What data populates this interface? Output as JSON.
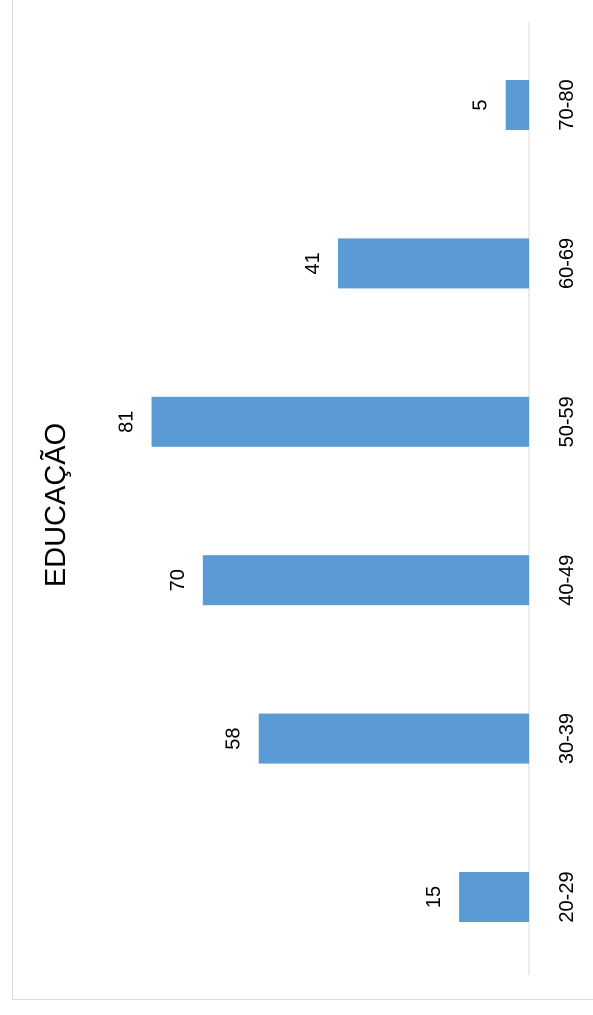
{
  "chart_data": {
    "type": "bar",
    "orientation": "rotated-90",
    "title": "EDUCAÇÃO",
    "categories": [
      "20-29",
      "30-39",
      "40-49",
      "50-59",
      "60-69",
      "70-80"
    ],
    "values": [
      15,
      58,
      70,
      81,
      41,
      5
    ],
    "data_labels": [
      "15",
      "58",
      "70",
      "81",
      "41",
      "5"
    ],
    "bar_color": "#5b9bd5",
    "axis_line_color": "#d9d9d9",
    "grid": false,
    "legend": "none"
  }
}
